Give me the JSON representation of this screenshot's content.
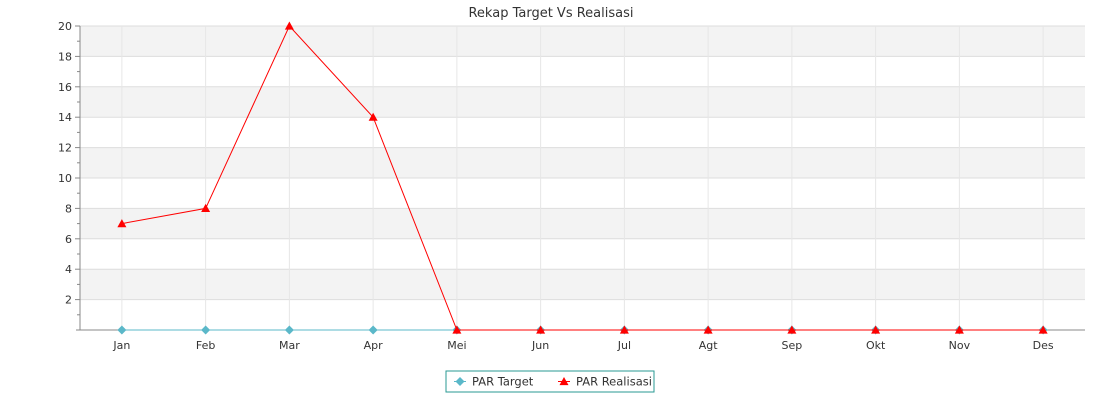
{
  "chart_data": {
    "type": "line",
    "title": "Rekap Target Vs Realisasi",
    "xlabel": "",
    "ylabel": "",
    "categories": [
      "Jan",
      "Feb",
      "Mar",
      "Apr",
      "Mei",
      "Jun",
      "Jul",
      "Agt",
      "Sep",
      "Okt",
      "Nov",
      "Des"
    ],
    "ylim": [
      0,
      20
    ],
    "yticks": [
      2,
      4,
      6,
      8,
      10,
      12,
      14,
      16,
      18,
      20
    ],
    "grid": true,
    "legend_position": "bottom",
    "series": [
      {
        "name": "PAR Target",
        "color": "#5bb8c9",
        "marker": "diamond",
        "values": [
          0,
          0,
          0,
          0,
          0,
          0,
          0,
          0,
          0,
          0,
          0,
          0
        ]
      },
      {
        "name": "PAR Realisasi",
        "color": "#ff0000",
        "marker": "triangle",
        "values": [
          7,
          8,
          20,
          14,
          0,
          0,
          0,
          0,
          0,
          0,
          0,
          0
        ]
      }
    ]
  }
}
